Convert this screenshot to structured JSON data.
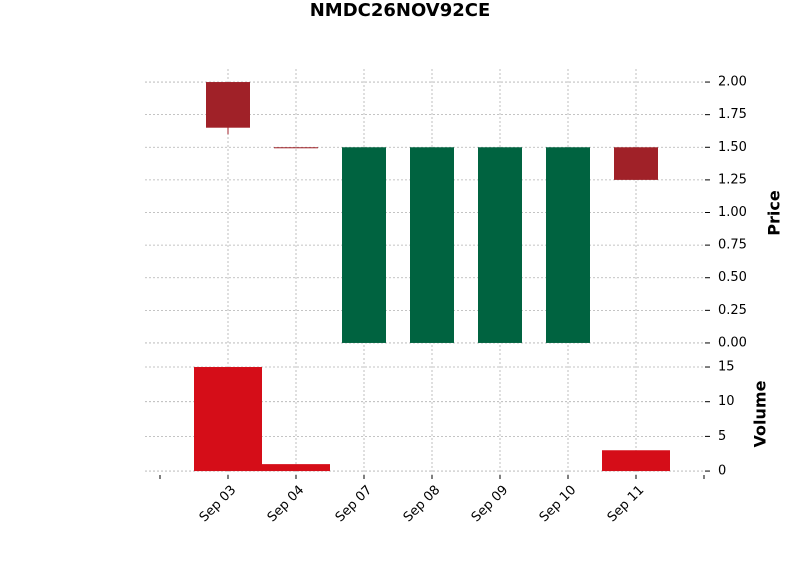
{
  "chart_data": {
    "type": "candlestick",
    "title": "NMDC26NOV92CE",
    "categories": [
      "Sep 03",
      "Sep 04",
      "Sep 07",
      "Sep 08",
      "Sep 09",
      "Sep 10",
      "Sep 11"
    ],
    "open": [
      2.0,
      1.5,
      0,
      0,
      0,
      0,
      1.5
    ],
    "high": [
      2.0,
      1.5,
      1.5,
      1.5,
      1.5,
      1.5,
      1.5
    ],
    "low": [
      1.6,
      1.5,
      0,
      0,
      0,
      0,
      1.25
    ],
    "close": [
      1.65,
      1.5,
      1.5,
      1.5,
      1.5,
      1.5,
      1.25
    ],
    "volume": [
      15,
      1,
      0,
      0,
      0,
      0,
      3
    ],
    "up_color": "#006340",
    "down_color": "#a02128",
    "volume_color": "#d50d18",
    "ylabel": "Price",
    "y2label": "Volume",
    "ylim": [
      -0.1,
      2.1
    ],
    "yticks": [
      {
        "value": 0,
        "label": "0.00"
      },
      {
        "value": 0.25,
        "label": "0.25"
      },
      {
        "value": 0.5,
        "label": "0.50"
      },
      {
        "value": 0.75,
        "label": "0.75"
      },
      {
        "value": 1,
        "label": "1.00"
      },
      {
        "value": 1.25,
        "label": "1.25"
      },
      {
        "value": 1.5,
        "label": "1.50"
      },
      {
        "value": 1.75,
        "label": "1.75"
      },
      {
        "value": 2,
        "label": "2.00"
      }
    ],
    "y2lim": [
      -1,
      16.3
    ],
    "y2ticks": [
      0,
      5,
      10,
      15
    ],
    "grid": true
  }
}
